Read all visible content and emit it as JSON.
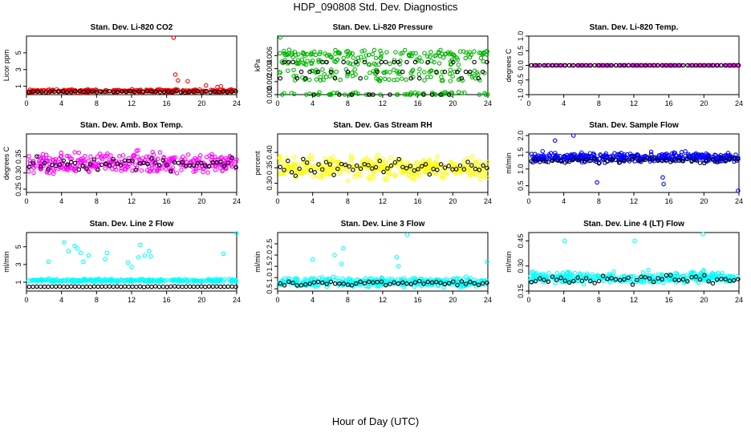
{
  "figure": {
    "title": "HDP_090808  Std. Dev. Diagnostics",
    "xlabel": "Hour of Day (UTC)"
  },
  "chart_data": [
    {
      "type": "scatter",
      "title": "Stan. Dev. Li-820 CO2",
      "ylabel": "Licor ppm",
      "xlim": [
        0,
        24
      ],
      "ylim": [
        0,
        7
      ],
      "xticks": [
        "0",
        "4",
        "8",
        "12",
        "16",
        "20",
        "24"
      ],
      "ytick_values": [
        1,
        3,
        5
      ],
      "yticks": [
        "1",
        "3",
        "5"
      ],
      "color": "#ff0000",
      "base": 0.45,
      "spread": 0.25,
      "n": 260,
      "spikes": [
        [
          16.8,
          6.8
        ],
        [
          17.0,
          2.4
        ],
        [
          17.3,
          1.7
        ],
        [
          18.4,
          1.6
        ],
        [
          20.5,
          1.1
        ],
        [
          22.2,
          1.0
        ],
        [
          21.8,
          0.9
        ]
      ],
      "black_base": 0.35,
      "black_spread": 0.12,
      "n_black": 50
    },
    {
      "type": "scatter",
      "title": "Stan. Dev. Li-820 Pressure",
      "ylabel": "kPa",
      "xlim": [
        0,
        24
      ],
      "ylim": [
        0,
        0.009
      ],
      "xticks": [
        "0",
        "4",
        "8",
        "12",
        "16",
        "20",
        "24"
      ],
      "ytick_values": [
        0,
        0.002,
        0.004,
        0.006
      ],
      "yticks": [
        "0.000",
        "0.002",
        "0.004",
        "0.006"
      ],
      "color": "#00b300",
      "levels": [
        0,
        0.0025,
        0.0035,
        0.005,
        0.006,
        0.0065
      ],
      "n": 330,
      "spikes": [
        [
          0.3,
          0.0088
        ]
      ],
      "black_levels": [
        0,
        0.0025,
        0.0035,
        0.005
      ],
      "n_black": 50
    },
    {
      "type": "scatter",
      "title": "Stan. Dev. Li-820 Temp.",
      "ylabel": "degrees C",
      "xlim": [
        0,
        24
      ],
      "ylim": [
        -1,
        1
      ],
      "xticks": [
        "0",
        "4",
        "8",
        "12",
        "16",
        "20",
        "24"
      ],
      "ytick_values": [
        -1,
        -0.5,
        0,
        0.5,
        1
      ],
      "yticks": [
        "-1.0",
        "-0.5",
        "0.0",
        "0.5",
        "1.0"
      ],
      "color": "#ff00ff",
      "base": 0,
      "spread": 0,
      "n": 140,
      "spikes": [],
      "black_base": 0,
      "black_spread": 0,
      "n_black": 50
    },
    {
      "type": "scatter",
      "title": "Stan. Dev. Amb. Box Temp.",
      "ylabel": "degrees C",
      "xlim": [
        0,
        24
      ],
      "ylim": [
        0.24,
        0.42
      ],
      "xticks": [
        "0",
        "4",
        "8",
        "12",
        "16",
        "20",
        "24"
      ],
      "ytick_values": [
        0.25,
        0.3,
        0.35
      ],
      "yticks": [
        "0.25",
        "0.30",
        "0.35"
      ],
      "color": "#ff00ff",
      "base": 0.33,
      "spread": 0.045,
      "n": 330,
      "spikes": [],
      "black_base": 0.33,
      "black_spread": 0.03,
      "n_black": 55
    },
    {
      "type": "scatter",
      "title": "Stan. Dev. Gas Stream RH",
      "ylabel": "percent",
      "xlim": [
        0,
        24
      ],
      "ylim": [
        0.27,
        0.46
      ],
      "xticks": [
        "0",
        "4",
        "8",
        "12",
        "16",
        "20",
        "24"
      ],
      "ytick_values": [
        0.3,
        0.35,
        0.4
      ],
      "yticks": [
        "0.30",
        "0.35",
        "0.40"
      ],
      "color": "#ffff00",
      "base": 0.35,
      "spread": 0.05,
      "n": 330,
      "spikes": [],
      "black_base": 0.35,
      "black_spread": 0.035,
      "n_black": 55
    },
    {
      "type": "scatter",
      "title": "Stan. Dev. Sample Flow",
      "ylabel": "ml/min",
      "xlim": [
        0,
        24
      ],
      "ylim": [
        0.3,
        2.05
      ],
      "xticks": [
        "0",
        "4",
        "8",
        "12",
        "16",
        "20",
        "24"
      ],
      "ytick_values": [
        0.5,
        1,
        1.5,
        2
      ],
      "yticks": [
        "0.5",
        "1.0",
        "1.5",
        "2.0"
      ],
      "color": "#0000ff",
      "base": 1.35,
      "spread": 0.2,
      "n": 400,
      "spikes": [
        [
          3.0,
          1.85
        ],
        [
          5.1,
          2.0
        ],
        [
          7.8,
          0.6
        ],
        [
          15.3,
          0.75
        ],
        [
          15.4,
          0.55
        ],
        [
          23.9,
          0.35
        ]
      ],
      "black_base": 1.25,
      "black_spread": 0.12,
      "n_black": 50
    },
    {
      "type": "scatter",
      "title": "Stan. Dev. Line 2 Flow",
      "ylabel": "ml/min",
      "xlim": [
        0,
        24
      ],
      "ylim": [
        0,
        6.6
      ],
      "xticks": [
        "0",
        "4",
        "8",
        "12",
        "16",
        "20",
        "24"
      ],
      "ytick_values": [
        1,
        3,
        5
      ],
      "yticks": [
        "1",
        "3",
        "5"
      ],
      "color": "#00ffff",
      "base": 1.2,
      "spread": 0.22,
      "n": 260,
      "spikes": [
        [
          4.3,
          5.5
        ],
        [
          5.5,
          5.1
        ],
        [
          6.2,
          4.3
        ],
        [
          6.5,
          3.3
        ],
        [
          5.8,
          4.8
        ],
        [
          4.8,
          4.5
        ],
        [
          13.0,
          5.2
        ],
        [
          14.0,
          4.5
        ],
        [
          12.8,
          3.8
        ],
        [
          14.2,
          3.9
        ],
        [
          11.6,
          3.2
        ],
        [
          12.0,
          2.7
        ],
        [
          2.5,
          3.3
        ],
        [
          9.2,
          4.3
        ],
        [
          9.0,
          3.6
        ],
        [
          22.5,
          4.2
        ],
        [
          24.0,
          6.5
        ],
        [
          13.5,
          4.0
        ],
        [
          7.1,
          4.0
        ]
      ],
      "black_base": 0.5,
      "black_spread": 0.05,
      "n_black": 55
    },
    {
      "type": "scatter",
      "title": "Stan. Dev. Line 3 Flow",
      "ylabel": "ml/min",
      "xlim": [
        0,
        24
      ],
      "ylim": [
        0.4,
        3.0
      ],
      "xticks": [
        "0",
        "4",
        "8",
        "12",
        "16",
        "20",
        "24"
      ],
      "ytick_values": [
        0.5,
        1,
        1.5,
        2,
        2.5
      ],
      "yticks": [
        "0.5",
        "1.0",
        "1.5",
        "2.0",
        "2.5"
      ],
      "color": "#00ffff",
      "base": 0.8,
      "spread": 0.3,
      "n": 330,
      "spikes": [
        [
          4.0,
          1.8
        ],
        [
          6.5,
          2.0
        ],
        [
          7.5,
          2.3
        ],
        [
          7.3,
          1.6
        ],
        [
          13.6,
          1.9
        ],
        [
          13.8,
          1.5
        ],
        [
          14.8,
          2.9
        ],
        [
          23.9,
          1.7
        ]
      ],
      "black_base": 0.75,
      "black_spread": 0.15,
      "n_black": 50
    },
    {
      "type": "scatter",
      "title": "Stan. Dev. Line 4 (LT) Flow",
      "ylabel": "ml/min",
      "xlim": [
        0,
        24
      ],
      "ylim": [
        0.15,
        0.5
      ],
      "xticks": [
        "0",
        "4",
        "8",
        "12",
        "16",
        "20",
        "24"
      ],
      "ytick_values": [
        0.15,
        0.3,
        0.45
      ],
      "yticks": [
        "0.15",
        "0.30",
        "0.45"
      ],
      "color": "#00ffff",
      "base": 0.23,
      "spread": 0.05,
      "n": 330,
      "spikes": [
        [
          4.1,
          0.45
        ],
        [
          12.1,
          0.45
        ],
        [
          19.9,
          0.49
        ]
      ],
      "black_base": 0.22,
      "black_spread": 0.04,
      "n_black": 50
    }
  ]
}
